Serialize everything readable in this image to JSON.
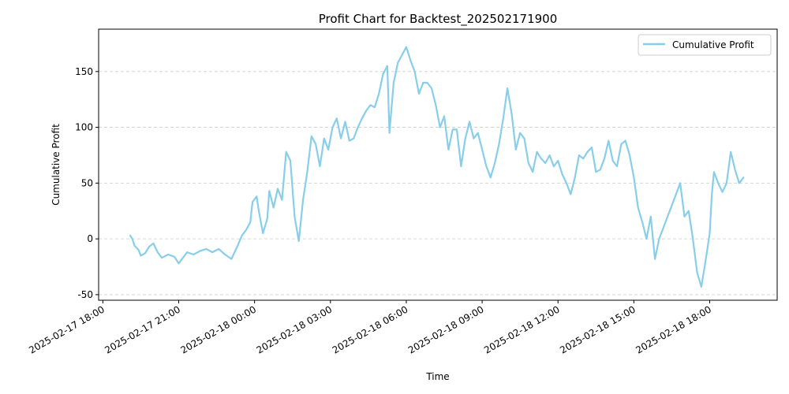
{
  "chart_data": {
    "type": "line",
    "title": "Profit Chart for Backtest_202502171900",
    "xlabel": "Time",
    "ylabel": "Cumulative Profit",
    "xlim": [
      "2025-02-17 17:50",
      "2025-02-18 20:40"
    ],
    "ylim": [
      -55,
      188
    ],
    "grid": {
      "y": true,
      "x": false,
      "style": "dashed"
    },
    "legend_position": "top-right",
    "x_ticks": [
      "2025-02-17 18:00",
      "2025-02-17 21:00",
      "2025-02-18 00:00",
      "2025-02-18 03:00",
      "2025-02-18 06:00",
      "2025-02-18 09:00",
      "2025-02-18 12:00",
      "2025-02-18 15:00",
      "2025-02-18 18:00"
    ],
    "y_ticks": [
      -50,
      0,
      50,
      100,
      150
    ],
    "series": [
      {
        "name": "Cumulative Profit",
        "color": "#87ceeb",
        "points": [
          [
            "2025-02-17 19:05",
            3
          ],
          [
            "2025-02-17 19:10",
            0
          ],
          [
            "2025-02-17 19:15",
            -6
          ],
          [
            "2025-02-17 19:25",
            -10
          ],
          [
            "2025-02-17 19:30",
            -15
          ],
          [
            "2025-02-17 19:40",
            -13
          ],
          [
            "2025-02-17 19:50",
            -7
          ],
          [
            "2025-02-17 20:00",
            -4
          ],
          [
            "2025-02-17 20:10",
            -12
          ],
          [
            "2025-02-17 20:20",
            -17
          ],
          [
            "2025-02-17 20:35",
            -14
          ],
          [
            "2025-02-17 20:50",
            -16
          ],
          [
            "2025-02-17 21:00",
            -22
          ],
          [
            "2025-02-17 21:10",
            -17
          ],
          [
            "2025-02-17 21:20",
            -12
          ],
          [
            "2025-02-17 21:35",
            -14
          ],
          [
            "2025-02-17 21:50",
            -11
          ],
          [
            "2025-02-17 22:05",
            -9
          ],
          [
            "2025-02-17 22:20",
            -12
          ],
          [
            "2025-02-17 22:35",
            -9
          ],
          [
            "2025-02-17 22:50",
            -14
          ],
          [
            "2025-02-17 23:05",
            -18
          ],
          [
            "2025-02-17 23:20",
            -6
          ],
          [
            "2025-02-17 23:30",
            3
          ],
          [
            "2025-02-17 23:40",
            8
          ],
          [
            "2025-02-17 23:50",
            15
          ],
          [
            "2025-02-17 23:55",
            33
          ],
          [
            "2025-02-18 00:05",
            38
          ],
          [
            "2025-02-18 00:10",
            25
          ],
          [
            "2025-02-18 00:20",
            5
          ],
          [
            "2025-02-18 00:30",
            18
          ],
          [
            "2025-02-18 00:35",
            43
          ],
          [
            "2025-02-18 00:45",
            28
          ],
          [
            "2025-02-18 00:55",
            45
          ],
          [
            "2025-02-18 01:05",
            35
          ],
          [
            "2025-02-18 01:15",
            78
          ],
          [
            "2025-02-18 01:25",
            70
          ],
          [
            "2025-02-18 01:35",
            20
          ],
          [
            "2025-02-18 01:45",
            -2
          ],
          [
            "2025-02-18 01:55",
            35
          ],
          [
            "2025-02-18 02:05",
            60
          ],
          [
            "2025-02-18 02:15",
            92
          ],
          [
            "2025-02-18 02:25",
            85
          ],
          [
            "2025-02-18 02:35",
            65
          ],
          [
            "2025-02-18 02:45",
            90
          ],
          [
            "2025-02-18 02:55",
            80
          ],
          [
            "2025-02-18 03:05",
            100
          ],
          [
            "2025-02-18 03:15",
            108
          ],
          [
            "2025-02-18 03:25",
            90
          ],
          [
            "2025-02-18 03:35",
            105
          ],
          [
            "2025-02-18 03:45",
            88
          ],
          [
            "2025-02-18 03:55",
            90
          ],
          [
            "2025-02-18 04:05",
            100
          ],
          [
            "2025-02-18 04:15",
            108
          ],
          [
            "2025-02-18 04:25",
            115
          ],
          [
            "2025-02-18 04:35",
            120
          ],
          [
            "2025-02-18 04:45",
            118
          ],
          [
            "2025-02-18 04:55",
            130
          ],
          [
            "2025-02-18 05:05",
            148
          ],
          [
            "2025-02-18 05:15",
            155
          ],
          [
            "2025-02-18 05:20",
            95
          ],
          [
            "2025-02-18 05:30",
            140
          ],
          [
            "2025-02-18 05:40",
            158
          ],
          [
            "2025-02-18 05:50",
            165
          ],
          [
            "2025-02-18 06:00",
            172
          ],
          [
            "2025-02-18 06:10",
            160
          ],
          [
            "2025-02-18 06:20",
            150
          ],
          [
            "2025-02-18 06:30",
            130
          ],
          [
            "2025-02-18 06:40",
            140
          ],
          [
            "2025-02-18 06:50",
            140
          ],
          [
            "2025-02-18 07:00",
            135
          ],
          [
            "2025-02-18 07:10",
            120
          ],
          [
            "2025-02-18 07:20",
            100
          ],
          [
            "2025-02-18 07:30",
            110
          ],
          [
            "2025-02-18 07:40",
            80
          ],
          [
            "2025-02-18 07:50",
            98
          ],
          [
            "2025-02-18 08:00",
            98
          ],
          [
            "2025-02-18 08:10",
            65
          ],
          [
            "2025-02-18 08:20",
            90
          ],
          [
            "2025-02-18 08:30",
            105
          ],
          [
            "2025-02-18 08:40",
            90
          ],
          [
            "2025-02-18 08:50",
            95
          ],
          [
            "2025-02-18 09:00",
            80
          ],
          [
            "2025-02-18 09:10",
            65
          ],
          [
            "2025-02-18 09:20",
            55
          ],
          [
            "2025-02-18 09:30",
            68
          ],
          [
            "2025-02-18 09:40",
            85
          ],
          [
            "2025-02-18 09:50",
            108
          ],
          [
            "2025-02-18 10:00",
            135
          ],
          [
            "2025-02-18 10:10",
            112
          ],
          [
            "2025-02-18 10:20",
            80
          ],
          [
            "2025-02-18 10:30",
            95
          ],
          [
            "2025-02-18 10:40",
            90
          ],
          [
            "2025-02-18 10:50",
            68
          ],
          [
            "2025-02-18 11:00",
            60
          ],
          [
            "2025-02-18 11:10",
            78
          ],
          [
            "2025-02-18 11:20",
            72
          ],
          [
            "2025-02-18 11:30",
            68
          ],
          [
            "2025-02-18 11:40",
            75
          ],
          [
            "2025-02-18 11:50",
            65
          ],
          [
            "2025-02-18 12:00",
            70
          ],
          [
            "2025-02-18 12:10",
            58
          ],
          [
            "2025-02-18 12:20",
            50
          ],
          [
            "2025-02-18 12:30",
            40
          ],
          [
            "2025-02-18 12:40",
            55
          ],
          [
            "2025-02-18 12:50",
            75
          ],
          [
            "2025-02-18 13:00",
            72
          ],
          [
            "2025-02-18 13:10",
            78
          ],
          [
            "2025-02-18 13:20",
            82
          ],
          [
            "2025-02-18 13:30",
            60
          ],
          [
            "2025-02-18 13:40",
            62
          ],
          [
            "2025-02-18 13:50",
            72
          ],
          [
            "2025-02-18 14:00",
            88
          ],
          [
            "2025-02-18 14:10",
            70
          ],
          [
            "2025-02-18 14:20",
            65
          ],
          [
            "2025-02-18 14:30",
            85
          ],
          [
            "2025-02-18 14:40",
            88
          ],
          [
            "2025-02-18 14:50",
            75
          ],
          [
            "2025-02-18 15:00",
            55
          ],
          [
            "2025-02-18 15:10",
            28
          ],
          [
            "2025-02-18 15:20",
            15
          ],
          [
            "2025-02-18 15:30",
            0
          ],
          [
            "2025-02-18 15:40",
            20
          ],
          [
            "2025-02-18 15:50",
            -18
          ],
          [
            "2025-02-18 16:00",
            0
          ],
          [
            "2025-02-18 16:10",
            10
          ],
          [
            "2025-02-18 16:20",
            20
          ],
          [
            "2025-02-18 16:30",
            30
          ],
          [
            "2025-02-18 16:40",
            40
          ],
          [
            "2025-02-18 16:50",
            50
          ],
          [
            "2025-02-18 17:00",
            20
          ],
          [
            "2025-02-18 17:10",
            25
          ],
          [
            "2025-02-18 17:20",
            0
          ],
          [
            "2025-02-18 17:30",
            -30
          ],
          [
            "2025-02-18 17:40",
            -43
          ],
          [
            "2025-02-18 17:50",
            -20
          ],
          [
            "2025-02-18 18:00",
            5
          ],
          [
            "2025-02-18 18:05",
            40
          ],
          [
            "2025-02-18 18:10",
            60
          ],
          [
            "2025-02-18 18:20",
            50
          ],
          [
            "2025-02-18 18:30",
            42
          ],
          [
            "2025-02-18 18:40",
            50
          ],
          [
            "2025-02-18 18:50",
            78
          ],
          [
            "2025-02-18 19:00",
            62
          ],
          [
            "2025-02-18 19:10",
            50
          ],
          [
            "2025-02-18 19:20",
            55
          ]
        ]
      }
    ]
  }
}
